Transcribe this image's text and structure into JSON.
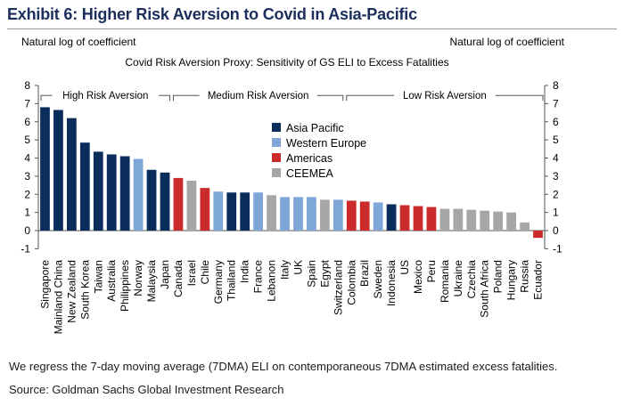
{
  "header": {
    "title": "Exhibit 6: Higher Risk Aversion to Covid in Asia-Pacific"
  },
  "footer": {
    "note": "We regress the 7-day moving average (7DMA) ELI on contemporaneous 7DMA estimated excess fatalities.",
    "source": "Source: Goldman Sachs Global Investment Research"
  },
  "chart_data": {
    "type": "bar",
    "title": "Covid Risk Aversion Proxy:  Sensitivity of GS ELI to Excess Fatalities",
    "ylabel_left": "Natural log of coefficient",
    "ylabel_right": "Natural log of coefficient",
    "ylim": [
      -1,
      8
    ],
    "yticks": [
      -1,
      0,
      1,
      2,
      3,
      4,
      5,
      6,
      7,
      8
    ],
    "grid": false,
    "legend_position": "center-top",
    "groups": [
      {
        "label": "High Risk Aversion",
        "from": "Singapore",
        "to": "Japan"
      },
      {
        "label": "Medium Risk Aversion",
        "from": "Canada",
        "to": "Switzerland"
      },
      {
        "label": "Low Risk Aversion",
        "from": "Colombia",
        "to": "Ecuador"
      }
    ],
    "regions": [
      {
        "name": "Asia Pacific",
        "color": "#0b2d5c"
      },
      {
        "name": "Western Europe",
        "color": "#7ea6d6"
      },
      {
        "name": "Americas",
        "color": "#cc2b2b"
      },
      {
        "name": "CEEMEA",
        "color": "#a6a6a6"
      }
    ],
    "categories": [
      "Singapore",
      "Mainland China",
      "New Zealand",
      "South Korea",
      "Taiwan",
      "Australia",
      "Philippines",
      "Norway",
      "Malaysia",
      "Japan",
      "Canada",
      "Israel",
      "Chile",
      "Germany",
      "Thailand",
      "India",
      "France",
      "Lebanon",
      "Italy",
      "UK",
      "Spain",
      "Egypt",
      "Switzerland",
      "Colombia",
      "Brazil",
      "Sweden",
      "Indonesia",
      "US",
      "Mexico",
      "Peru",
      "Romania",
      "Ukraine",
      "Czechia",
      "South Africa",
      "Poland",
      "Hungary",
      "Russia",
      "Ecuador"
    ],
    "values": [
      6.8,
      6.65,
      6.2,
      4.85,
      4.35,
      4.2,
      4.1,
      3.95,
      3.35,
      3.2,
      2.9,
      2.75,
      2.35,
      2.15,
      2.1,
      2.1,
      2.1,
      1.95,
      1.85,
      1.85,
      1.85,
      1.7,
      1.7,
      1.65,
      1.6,
      1.55,
      1.45,
      1.4,
      1.35,
      1.3,
      1.2,
      1.2,
      1.15,
      1.1,
      1.05,
      1.0,
      0.45,
      -0.4
    ],
    "region_of": [
      "Asia Pacific",
      "Asia Pacific",
      "Asia Pacific",
      "Asia Pacific",
      "Asia Pacific",
      "Asia Pacific",
      "Asia Pacific",
      "Western Europe",
      "Asia Pacific",
      "Asia Pacific",
      "Americas",
      "CEEMEA",
      "Americas",
      "Western Europe",
      "Asia Pacific",
      "Asia Pacific",
      "Western Europe",
      "CEEMEA",
      "Western Europe",
      "Western Europe",
      "Western Europe",
      "CEEMEA",
      "Western Europe",
      "Americas",
      "Americas",
      "Western Europe",
      "Asia Pacific",
      "Americas",
      "Americas",
      "Americas",
      "CEEMEA",
      "CEEMEA",
      "CEEMEA",
      "CEEMEA",
      "CEEMEA",
      "CEEMEA",
      "CEEMEA",
      "Americas"
    ]
  }
}
